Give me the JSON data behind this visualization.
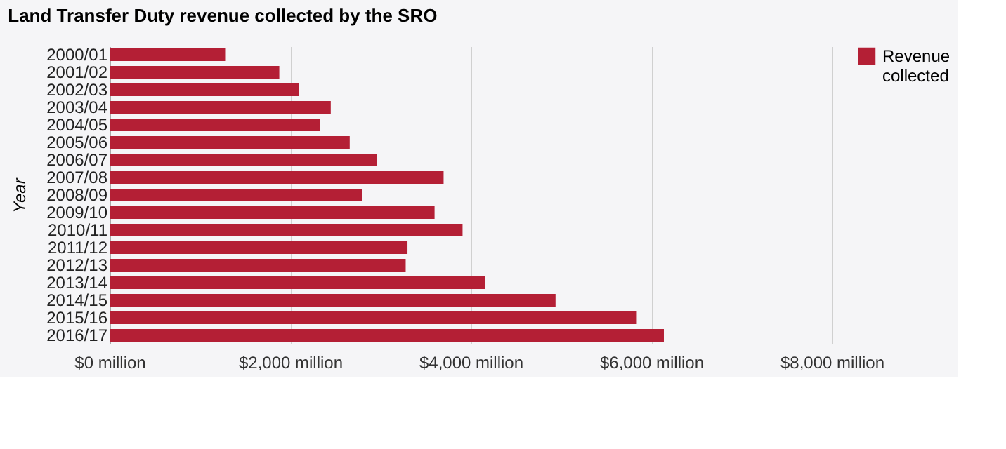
{
  "chart_data": {
    "type": "bar",
    "orientation": "horizontal",
    "title": "Land Transfer Duty revenue collected by the SRO",
    "ylabel": "Year",
    "categories": [
      "2000/01",
      "2001/02",
      "2002/03",
      "2003/04",
      "2004/05",
      "2005/06",
      "2006/07",
      "2007/08",
      "2008/09",
      "2009/10",
      "2010/11",
      "2011/12",
      "2012/13",
      "2013/14",
      "2014/15",
      "2015/16",
      "2016/17"
    ],
    "series": [
      {
        "name": "Revenue collected",
        "color": "#b41f35",
        "values": [
          1280,
          1880,
          2100,
          2450,
          2330,
          2660,
          2960,
          3700,
          2800,
          3600,
          3910,
          3300,
          3280,
          4160,
          4940,
          5840,
          6140
        ]
      }
    ],
    "xlim": [
      0,
      8000
    ],
    "xticks": [
      {
        "value": 0,
        "label": "$0 million"
      },
      {
        "value": 2000,
        "label": "$2,000 million"
      },
      {
        "value": 4000,
        "label": "$4,000 million"
      },
      {
        "value": 6000,
        "label": "$6,000 million"
      },
      {
        "value": 8000,
        "label": "$8,000 million"
      }
    ],
    "grid": "x",
    "legend": "top right"
  }
}
